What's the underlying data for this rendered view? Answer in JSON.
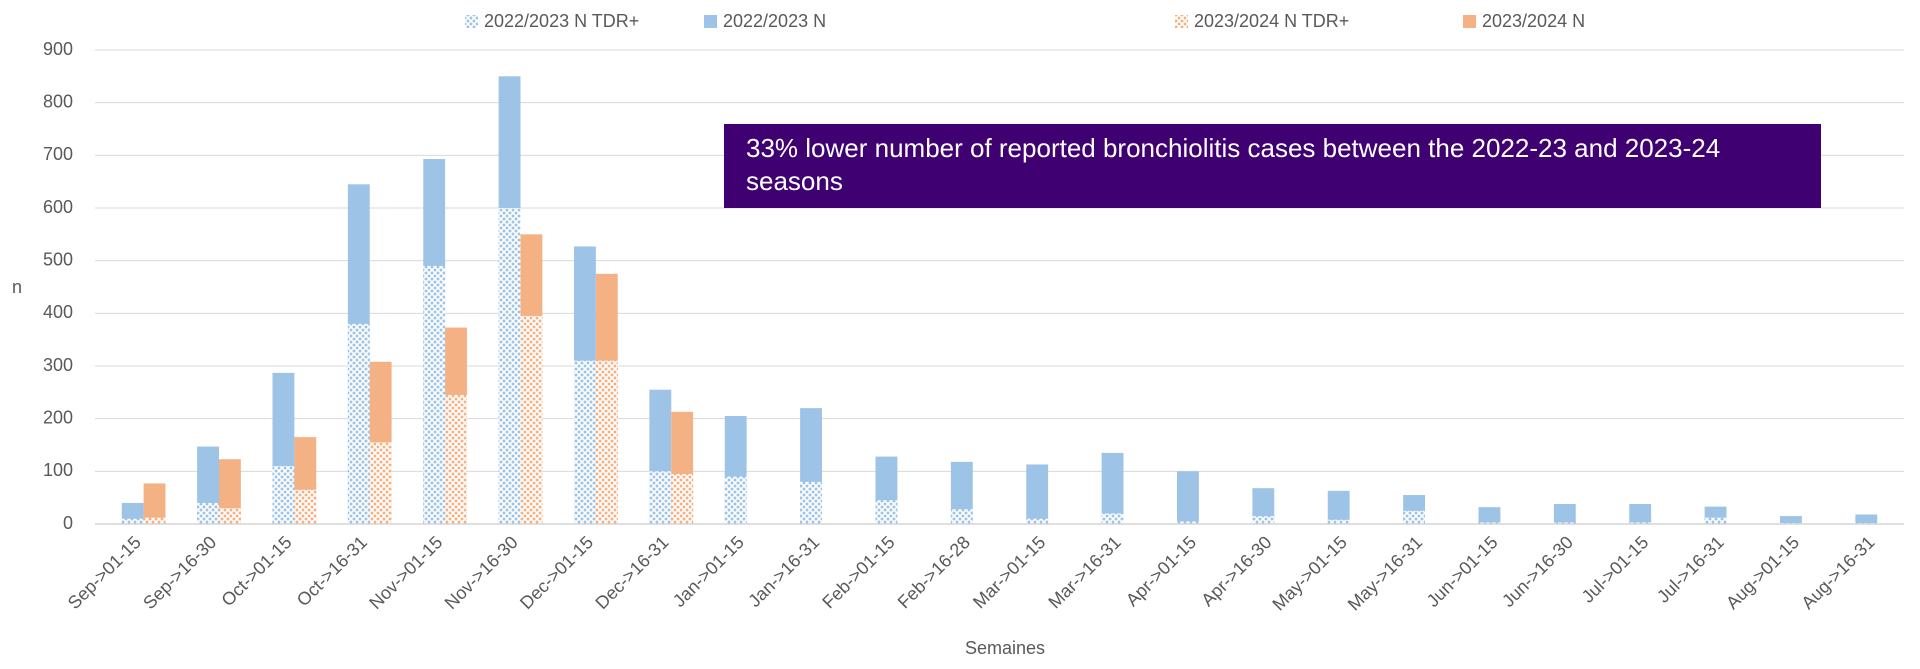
{
  "chart_data": {
    "type": "bar",
    "x_label": "Semaines",
    "y_label": "n",
    "annotation": "33% lower number of reported bronchiolitis cases between the 2022-23 and 2023-24 seasons",
    "categories": [
      "Sep->01-15",
      "Sep->16-30",
      "Oct->01-15",
      "Oct->16-31",
      "Nov->01-15",
      "Nov->16-30",
      "Dec->01-15",
      "Dec->16-31",
      "Jan->01-15",
      "Jan->16-31",
      "Feb->01-15",
      "Feb->16-28",
      "Mar->01-15",
      "Mar->16-31",
      "Apr->01-15",
      "Apr->16-30",
      "May->01-15",
      "May->16-31",
      "Jun->01-15",
      "Jun->16-30",
      "Jul->01-15",
      "Jul->16-31",
      "Aug->01-15",
      "Aug->16-31"
    ],
    "series": [
      {
        "name": "2022/2023 N TDR+",
        "color": "#9dc3e6",
        "hatched": true,
        "values": [
          10,
          40,
          110,
          380,
          490,
          600,
          310,
          100,
          90,
          80,
          45,
          28,
          10,
          20,
          5,
          15,
          8,
          25,
          3,
          3,
          3,
          12,
          2,
          2
        ]
      },
      {
        "name": "2022/2023 N",
        "color": "#9dc3e6",
        "hatched": false,
        "values": [
          40,
          147,
          287,
          645,
          693,
          850,
          527,
          255,
          205,
          220,
          128,
          118,
          113,
          135,
          100,
          68,
          63,
          55,
          32,
          38,
          38,
          33,
          15,
          18
        ]
      },
      {
        "name": "2023/2024 N TDR+",
        "color": "#f4b183",
        "hatched": true,
        "values": [
          12,
          30,
          65,
          155,
          245,
          395,
          310,
          95,
          null,
          null,
          null,
          null,
          null,
          null,
          null,
          null,
          null,
          null,
          null,
          null,
          null,
          null,
          null,
          null
        ]
      },
      {
        "name": "2023/2024 N",
        "color": "#f4b183",
        "hatched": false,
        "values": [
          77,
          123,
          165,
          308,
          373,
          550,
          475,
          213,
          null,
          null,
          null,
          null,
          null,
          null,
          null,
          null,
          null,
          null,
          null,
          null,
          null,
          null,
          null,
          null
        ]
      }
    ],
    "ylim": [
      0,
      900
    ],
    "yticks": [
      0,
      100,
      200,
      300,
      400,
      500,
      600,
      700,
      800,
      900
    ],
    "grid": true,
    "legend": "top"
  }
}
